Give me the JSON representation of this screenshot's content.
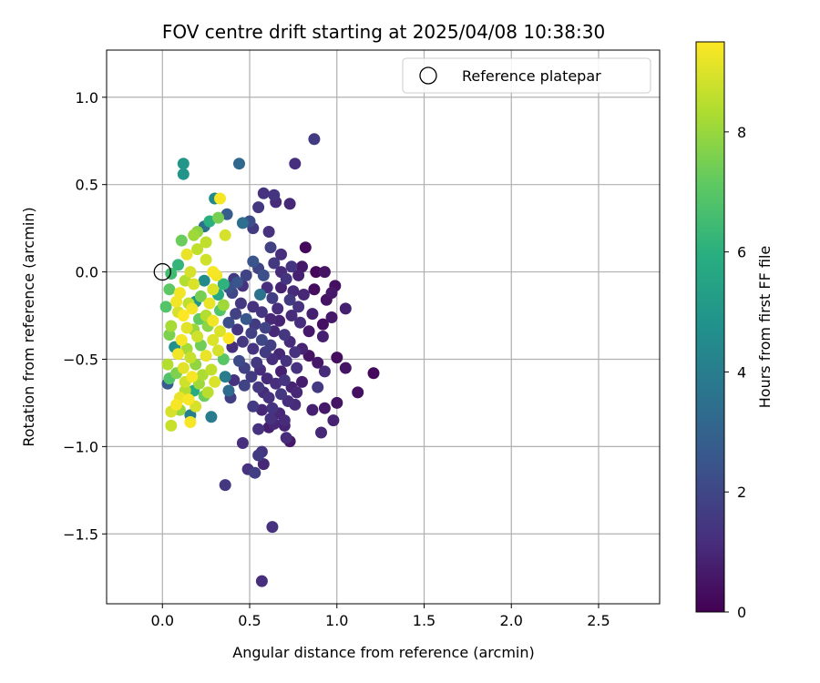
{
  "chart_data": {
    "type": "scatter",
    "title": "FOV centre drift starting at 2025/04/08 10:38:30",
    "xlabel": "Angular distance from reference (arcmin)",
    "ylabel": "Rotation from reference (arcmin)",
    "xlim": [
      -0.32,
      2.85
    ],
    "ylim": [
      -1.9,
      1.27
    ],
    "xticks": [
      0.0,
      0.5,
      1.0,
      1.5,
      2.0,
      2.5
    ],
    "xtick_labels": [
      "0.0",
      "0.5",
      "1.0",
      "1.5",
      "2.0",
      "2.5"
    ],
    "yticks": [
      1.0,
      0.5,
      0.0,
      -0.5,
      -1.0,
      -1.5
    ],
    "ytick_labels": [
      "1.0",
      "0.5",
      "0.0",
      "−0.5",
      "−1.0",
      "−1.5"
    ],
    "grid": true,
    "legend": {
      "label": "Reference platepar",
      "placement": "top-right"
    },
    "reference_point": {
      "x": 0.0,
      "y": 0.0
    },
    "colorbar": {
      "label": "Hours from first FF file",
      "min": 0,
      "max": 9.5,
      "ticks": [
        0,
        2,
        4,
        6,
        8
      ],
      "tick_labels": [
        "0",
        "2",
        "4",
        "6",
        "8"
      ],
      "colormap": "viridis"
    },
    "points": [
      [
        0.87,
        0.76,
        1.6
      ],
      [
        0.76,
        0.62,
        1.2
      ],
      [
        0.44,
        0.62,
        3.2
      ],
      [
        0.12,
        0.62,
        5.0
      ],
      [
        0.12,
        0.56,
        4.9
      ],
      [
        0.58,
        0.45,
        1.3
      ],
      [
        0.64,
        0.44,
        1.4
      ],
      [
        0.65,
        0.4,
        1.1
      ],
      [
        0.73,
        0.39,
        1.0
      ],
      [
        0.55,
        0.37,
        1.5
      ],
      [
        0.3,
        0.42,
        4.5
      ],
      [
        0.33,
        0.42,
        9.4
      ],
      [
        0.37,
        0.33,
        2.8
      ],
      [
        0.32,
        0.31,
        7.5
      ],
      [
        0.24,
        0.26,
        3.5
      ],
      [
        0.27,
        0.29,
        6.0
      ],
      [
        0.46,
        0.28,
        3.4
      ],
      [
        0.5,
        0.29,
        2.2
      ],
      [
        0.52,
        0.25,
        1.6
      ],
      [
        0.61,
        0.23,
        1.3
      ],
      [
        0.2,
        0.23,
        7.8
      ],
      [
        0.18,
        0.21,
        8.1
      ],
      [
        0.11,
        0.18,
        7.3
      ],
      [
        0.25,
        0.17,
        8.6
      ],
      [
        0.36,
        0.21,
        8.9
      ],
      [
        0.62,
        0.14,
        1.8
      ],
      [
        0.82,
        0.14,
        0.2
      ],
      [
        0.2,
        0.13,
        8.6
      ],
      [
        0.25,
        0.07,
        8.8
      ],
      [
        0.14,
        0.1,
        9.2
      ],
      [
        0.52,
        0.06,
        2.5
      ],
      [
        0.68,
        0.1,
        1.2
      ],
      [
        0.09,
        0.04,
        6.2
      ],
      [
        0.16,
        0.0,
        8.9
      ],
      [
        0.55,
        0.02,
        1.9
      ],
      [
        0.64,
        0.05,
        1.5
      ],
      [
        0.68,
        0.0,
        1.1
      ],
      [
        0.74,
        0.03,
        1.4
      ],
      [
        0.8,
        0.03,
        0.6
      ],
      [
        0.88,
        0.0,
        0.2
      ],
      [
        0.93,
        0.0,
        0.5
      ],
      [
        0.05,
        -0.01,
        6.5
      ],
      [
        0.29,
        0.0,
        9.4
      ],
      [
        0.31,
        -0.02,
        9.3
      ],
      [
        0.48,
        -0.02,
        1.9
      ],
      [
        0.58,
        -0.02,
        2.3
      ],
      [
        0.71,
        -0.04,
        1.4
      ],
      [
        0.78,
        -0.02,
        0.8
      ],
      [
        0.41,
        -0.04,
        1.6
      ],
      [
        0.43,
        -0.06,
        2.5
      ],
      [
        0.13,
        -0.05,
        8.4
      ],
      [
        0.18,
        -0.07,
        9.0
      ],
      [
        0.24,
        -0.05,
        4.5
      ],
      [
        0.35,
        -0.07,
        6.1
      ],
      [
        0.38,
        -0.09,
        2.3
      ],
      [
        0.46,
        -0.08,
        1.3
      ],
      [
        0.6,
        -0.09,
        1.2
      ],
      [
        0.68,
        -0.09,
        0.9
      ],
      [
        0.75,
        -0.11,
        1.1
      ],
      [
        0.87,
        -0.1,
        0.3
      ],
      [
        0.99,
        -0.08,
        0.4
      ],
      [
        0.04,
        -0.1,
        7.1
      ],
      [
        0.1,
        -0.12,
        9.3
      ],
      [
        0.22,
        -0.14,
        7.5
      ],
      [
        0.29,
        -0.1,
        9.0
      ],
      [
        0.32,
        -0.13,
        5.7
      ],
      [
        0.4,
        -0.12,
        2.0
      ],
      [
        0.56,
        -0.13,
        3.6
      ],
      [
        0.63,
        -0.15,
        1.7
      ],
      [
        0.73,
        -0.16,
        1.6
      ],
      [
        0.81,
        -0.13,
        1.0
      ],
      [
        0.97,
        -0.12,
        0.6
      ],
      [
        0.08,
        -0.17,
        9.3
      ],
      [
        0.15,
        -0.18,
        8.6
      ],
      [
        0.19,
        -0.17,
        4.9
      ],
      [
        0.27,
        -0.18,
        9.2
      ],
      [
        0.35,
        -0.19,
        8.1
      ],
      [
        0.45,
        -0.18,
        1.5
      ],
      [
        0.52,
        -0.2,
        1.3
      ],
      [
        0.66,
        -0.21,
        1.2
      ],
      [
        0.78,
        -0.2,
        1.3
      ],
      [
        0.94,
        -0.16,
        0.5
      ],
      [
        1.05,
        -0.21,
        0.8
      ],
      [
        0.02,
        -0.2,
        6.9
      ],
      [
        0.09,
        -0.23,
        8.9
      ],
      [
        0.17,
        -0.21,
        9.3
      ],
      [
        0.25,
        -0.25,
        8.4
      ],
      [
        0.33,
        -0.22,
        6.9
      ],
      [
        0.42,
        -0.24,
        1.8
      ],
      [
        0.48,
        -0.27,
        2.6
      ],
      [
        0.57,
        -0.23,
        1.4
      ],
      [
        0.62,
        -0.27,
        1.0
      ],
      [
        0.74,
        -0.25,
        1.1
      ],
      [
        0.86,
        -0.24,
        0.8
      ],
      [
        0.97,
        -0.26,
        0.6
      ],
      [
        0.12,
        -0.25,
        9.5
      ],
      [
        0.21,
        -0.27,
        7.2
      ],
      [
        0.29,
        -0.28,
        9.3
      ],
      [
        0.38,
        -0.29,
        2.2
      ],
      [
        0.53,
        -0.3,
        1.6
      ],
      [
        0.59,
        -0.32,
        1.9
      ],
      [
        0.67,
        -0.28,
        0.9
      ],
      [
        0.79,
        -0.29,
        1.2
      ],
      [
        0.92,
        -0.3,
        0.4
      ],
      [
        0.05,
        -0.31,
        8.2
      ],
      [
        0.14,
        -0.32,
        9.1
      ],
      [
        0.18,
        -0.33,
        8.0
      ],
      [
        0.26,
        -0.31,
        7.8
      ],
      [
        0.33,
        -0.34,
        9.0
      ],
      [
        0.43,
        -0.33,
        1.4
      ],
      [
        0.51,
        -0.35,
        1.8
      ],
      [
        0.64,
        -0.34,
        1.0
      ],
      [
        0.7,
        -0.36,
        1.5
      ],
      [
        0.84,
        -0.34,
        0.6
      ],
      [
        0.92,
        -0.37,
        0.8
      ],
      [
        0.04,
        -0.36,
        7.6
      ],
      [
        0.11,
        -0.39,
        9.4
      ],
      [
        0.2,
        -0.37,
        8.8
      ],
      [
        0.29,
        -0.39,
        9.0
      ],
      [
        0.38,
        -0.38,
        9.5
      ],
      [
        0.46,
        -0.4,
        1.5
      ],
      [
        0.57,
        -0.39,
        2.0
      ],
      [
        0.62,
        -0.42,
        1.7
      ],
      [
        0.73,
        -0.4,
        1.1
      ],
      [
        0.8,
        -0.44,
        0.9
      ],
      [
        0.07,
        -0.43,
        4.7
      ],
      [
        0.14,
        -0.44,
        8.2
      ],
      [
        0.22,
        -0.42,
        7.4
      ],
      [
        0.32,
        -0.45,
        8.9
      ],
      [
        0.4,
        -0.43,
        1.2
      ],
      [
        0.52,
        -0.44,
        1.4
      ],
      [
        0.59,
        -0.46,
        1.6
      ],
      [
        0.67,
        -0.47,
        1.0
      ],
      [
        0.76,
        -0.46,
        1.3
      ],
      [
        0.84,
        -0.48,
        0.5
      ],
      [
        1.0,
        -0.49,
        0.3
      ],
      [
        0.09,
        -0.47,
        9.3
      ],
      [
        0.16,
        -0.49,
        8.7
      ],
      [
        0.25,
        -0.48,
        9.2
      ],
      [
        0.35,
        -0.5,
        7.0
      ],
      [
        0.44,
        -0.51,
        2.1
      ],
      [
        0.54,
        -0.52,
        1.5
      ],
      [
        0.63,
        -0.5,
        1.2
      ],
      [
        0.71,
        -0.51,
        1.3
      ],
      [
        0.89,
        -0.52,
        0.6
      ],
      [
        1.05,
        -0.55,
        0.5
      ],
      [
        0.03,
        -0.53,
        8.4
      ],
      [
        0.12,
        -0.55,
        9.1
      ],
      [
        0.19,
        -0.53,
        7.9
      ],
      [
        0.28,
        -0.56,
        8.6
      ],
      [
        0.47,
        -0.55,
        1.8
      ],
      [
        0.56,
        -0.56,
        1.2
      ],
      [
        0.68,
        -0.57,
        0.8
      ],
      [
        0.77,
        -0.55,
        1.3
      ],
      [
        0.93,
        -0.57,
        1.1
      ],
      [
        1.21,
        -0.58,
        0.2
      ],
      [
        0.08,
        -0.58,
        7.6
      ],
      [
        0.17,
        -0.6,
        9.4
      ],
      [
        0.23,
        -0.59,
        8.3
      ],
      [
        0.36,
        -0.6,
        4.0
      ],
      [
        0.41,
        -0.62,
        1.3
      ],
      [
        0.51,
        -0.6,
        1.6
      ],
      [
        0.6,
        -0.61,
        1.1
      ],
      [
        0.7,
        -0.62,
        1.4
      ],
      [
        0.8,
        -0.63,
        0.7
      ],
      [
        0.04,
        -0.61,
        6.8
      ],
      [
        0.13,
        -0.63,
        8.8
      ],
      [
        0.21,
        -0.64,
        8.1
      ],
      [
        0.3,
        -0.63,
        9.0
      ],
      [
        0.47,
        -0.65,
        1.9
      ],
      [
        0.55,
        -0.66,
        1.5
      ],
      [
        0.65,
        -0.64,
        1.2
      ],
      [
        0.74,
        -0.66,
        0.9
      ],
      [
        0.89,
        -0.66,
        1.6
      ],
      [
        0.03,
        -0.64,
        2.7
      ],
      [
        1.12,
        -0.69,
        0.4
      ],
      [
        0.13,
        -0.68,
        8.4
      ],
      [
        0.18,
        -0.68,
        5.8
      ],
      [
        0.26,
        -0.69,
        8.5
      ],
      [
        0.38,
        -0.68,
        3.3
      ],
      [
        0.58,
        -0.69,
        1.1
      ],
      [
        0.68,
        -0.7,
        1.5
      ],
      [
        0.77,
        -0.69,
        1.0
      ],
      [
        0.1,
        -0.72,
        9.2
      ],
      [
        0.15,
        -0.73,
        9.4
      ],
      [
        0.24,
        -0.71,
        7.3
      ],
      [
        0.39,
        -0.72,
        1.7
      ],
      [
        0.61,
        -0.72,
        1.3
      ],
      [
        0.72,
        -0.74,
        1.2
      ],
      [
        1.0,
        -0.75,
        0.5
      ],
      [
        0.08,
        -0.76,
        9.4
      ],
      [
        0.19,
        -0.77,
        8.9
      ],
      [
        0.52,
        -0.77,
        1.6
      ],
      [
        0.63,
        -0.78,
        1.4
      ],
      [
        0.76,
        -0.76,
        1.1
      ],
      [
        0.05,
        -0.8,
        8.9
      ],
      [
        0.1,
        -0.79,
        8.0
      ],
      [
        0.16,
        -0.82,
        4.1
      ],
      [
        0.28,
        -0.83,
        3.9
      ],
      [
        0.57,
        -0.79,
        1.0
      ],
      [
        0.67,
        -0.81,
        1.0
      ],
      [
        0.86,
        -0.79,
        0.8
      ],
      [
        0.93,
        -0.78,
        0.6
      ],
      [
        0.16,
        -0.86,
        9.4
      ],
      [
        0.62,
        -0.84,
        1.3
      ],
      [
        0.7,
        -0.85,
        1.1
      ],
      [
        0.98,
        -0.85,
        0.9
      ],
      [
        0.05,
        -0.88,
        8.7
      ],
      [
        0.55,
        -0.9,
        1.3
      ],
      [
        0.61,
        -0.89,
        0.8
      ],
      [
        0.64,
        -0.87,
        1.0
      ],
      [
        0.7,
        -0.88,
        0.9
      ],
      [
        0.91,
        -0.92,
        1.0
      ],
      [
        0.71,
        -0.95,
        1.1
      ],
      [
        0.73,
        -0.97,
        0.6
      ],
      [
        0.46,
        -0.98,
        1.2
      ],
      [
        0.57,
        -1.03,
        1.4
      ],
      [
        0.55,
        -1.05,
        1.6
      ],
      [
        0.49,
        -1.13,
        1.3
      ],
      [
        0.58,
        -1.1,
        1.0
      ],
      [
        0.53,
        -1.15,
        1.7
      ],
      [
        0.36,
        -1.22,
        1.5
      ],
      [
        0.63,
        -1.46,
        1.3
      ],
      [
        0.57,
        -1.77,
        1.2
      ]
    ]
  }
}
